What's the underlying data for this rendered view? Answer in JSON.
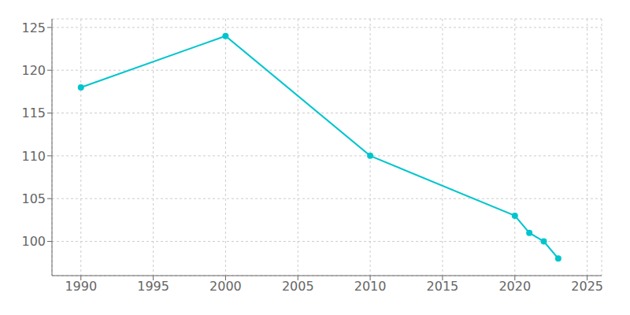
{
  "chart_data": {
    "type": "line",
    "x": [
      1990,
      2000,
      2010,
      2020,
      2021,
      2022,
      2023
    ],
    "values": [
      118,
      124,
      110,
      103,
      101,
      100,
      98
    ],
    "color": "#00C5CD",
    "marker": "circle",
    "xlim": [
      1988,
      2026
    ],
    "ylim": [
      96,
      126
    ],
    "xticks": [
      1990,
      1995,
      2000,
      2005,
      2010,
      2015,
      2020,
      2025
    ],
    "yticks": [
      100,
      105,
      110,
      115,
      120,
      125
    ],
    "grid": true
  }
}
